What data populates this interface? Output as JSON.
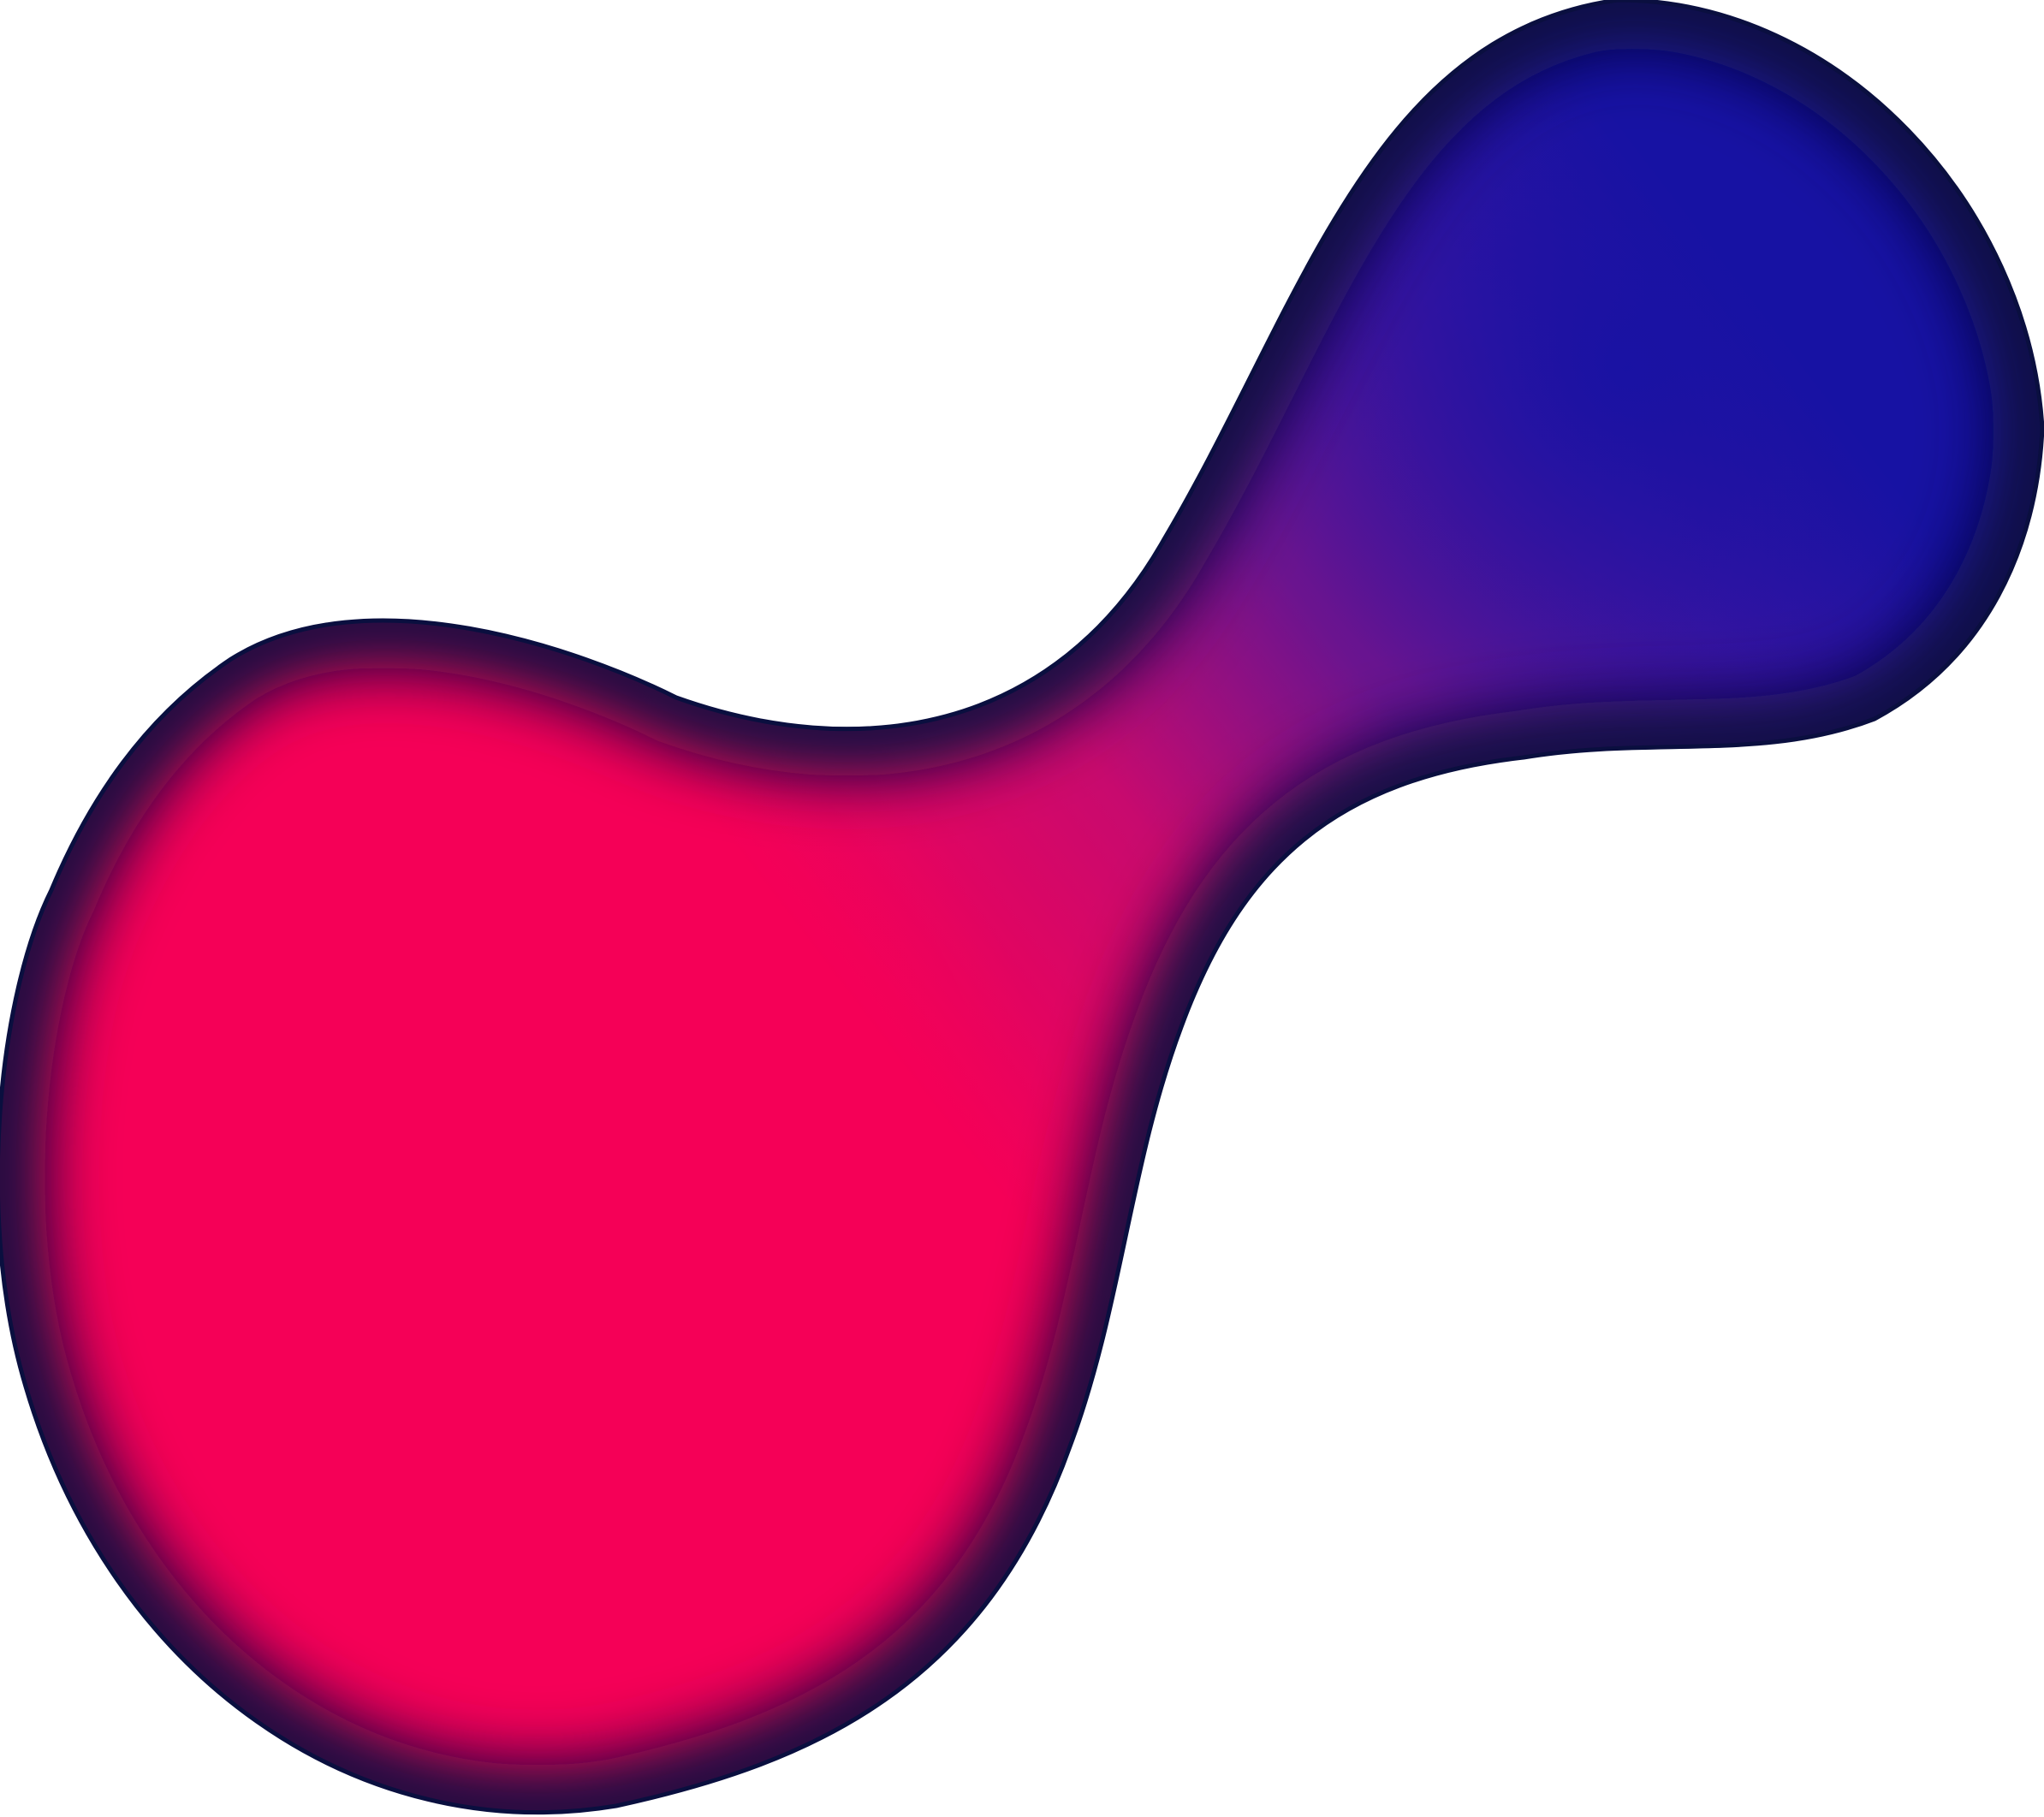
{
  "background_color": "#ffffff",
  "blob": {
    "colors": {
      "pink": "#f50057",
      "magenta": "#c80a6e",
      "purple": "#6a148f",
      "violet": "#3b14a0",
      "blue": "#1712a3",
      "navy_edge": "#0a0f3f"
    }
  }
}
